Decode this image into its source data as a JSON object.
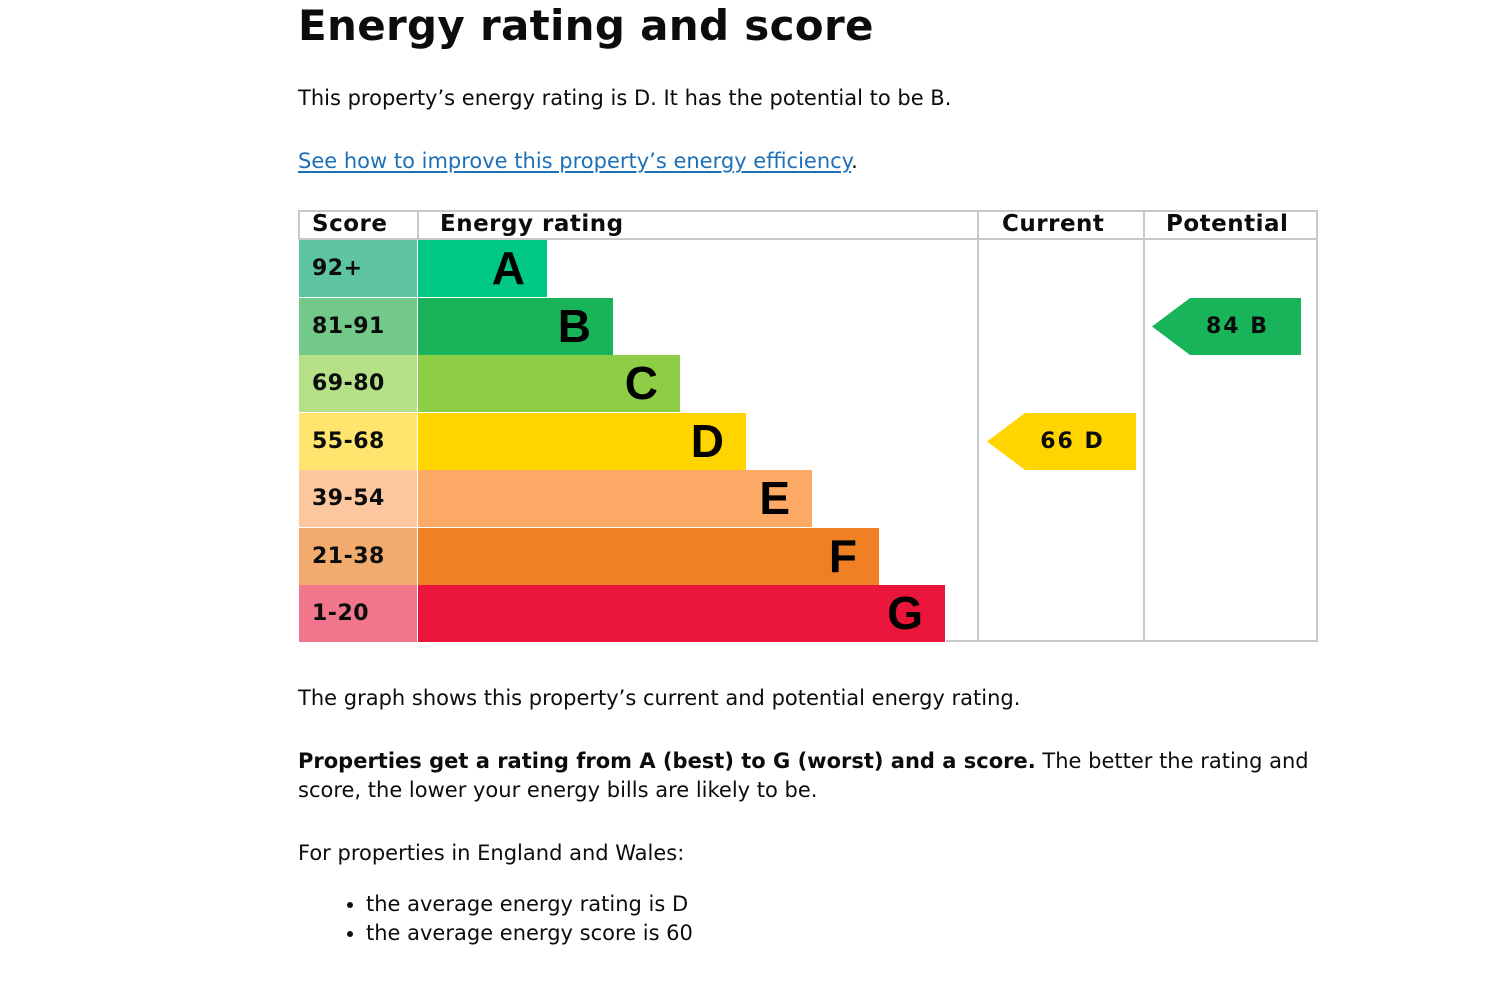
{
  "heading": "Energy rating and score",
  "intro": "This property’s energy rating is D. It has the potential to be B.",
  "improve_link": "See how to improve this property’s energy efficiency",
  "improve_period": ".",
  "chart_headers": {
    "score": "Score",
    "rating": "Energy rating",
    "current": "Current",
    "potential": "Potential"
  },
  "chart_data": {
    "type": "bar",
    "bands": [
      {
        "score": "92+",
        "letter": "A",
        "color": "#5fc4a1",
        "bar_color": "#00c781"
      },
      {
        "score": "81-91",
        "letter": "B",
        "color": "#72c98a",
        "bar_color": "#19b459"
      },
      {
        "score": "69-80",
        "letter": "C",
        "color": "#b5e085",
        "bar_color": "#8dce46"
      },
      {
        "score": "55-68",
        "letter": "D",
        "color": "#ffe56e",
        "bar_color": "#ffd500"
      },
      {
        "score": "39-54",
        "letter": "E",
        "color": "#fcc79e",
        "bar_color": "#fcaa65"
      },
      {
        "score": "21-38",
        "letter": "F",
        "color": "#f2ab6f",
        "bar_color": "#ef8023"
      },
      {
        "score": "1-20",
        "letter": "G",
        "color": "#f1768b",
        "bar_color": "#e9153b"
      }
    ],
    "current": {
      "score": 66,
      "letter": "D",
      "label": "66  D",
      "color": "#ffd500"
    },
    "potential": {
      "score": 84,
      "letter": "B",
      "label": "84  B",
      "color": "#19b459"
    }
  },
  "graph_note": "The graph shows this property’s current and potential energy rating.",
  "rating_bold": "Properties get a rating from A (best) to G (worst) and a score.",
  "rating_rest": " The better the rating and score, the lower your energy bills are likely to be.",
  "ew_intro": "For properties in England and Wales:",
  "averages": [
    "the average energy rating is D",
    "the average energy score is 60"
  ]
}
